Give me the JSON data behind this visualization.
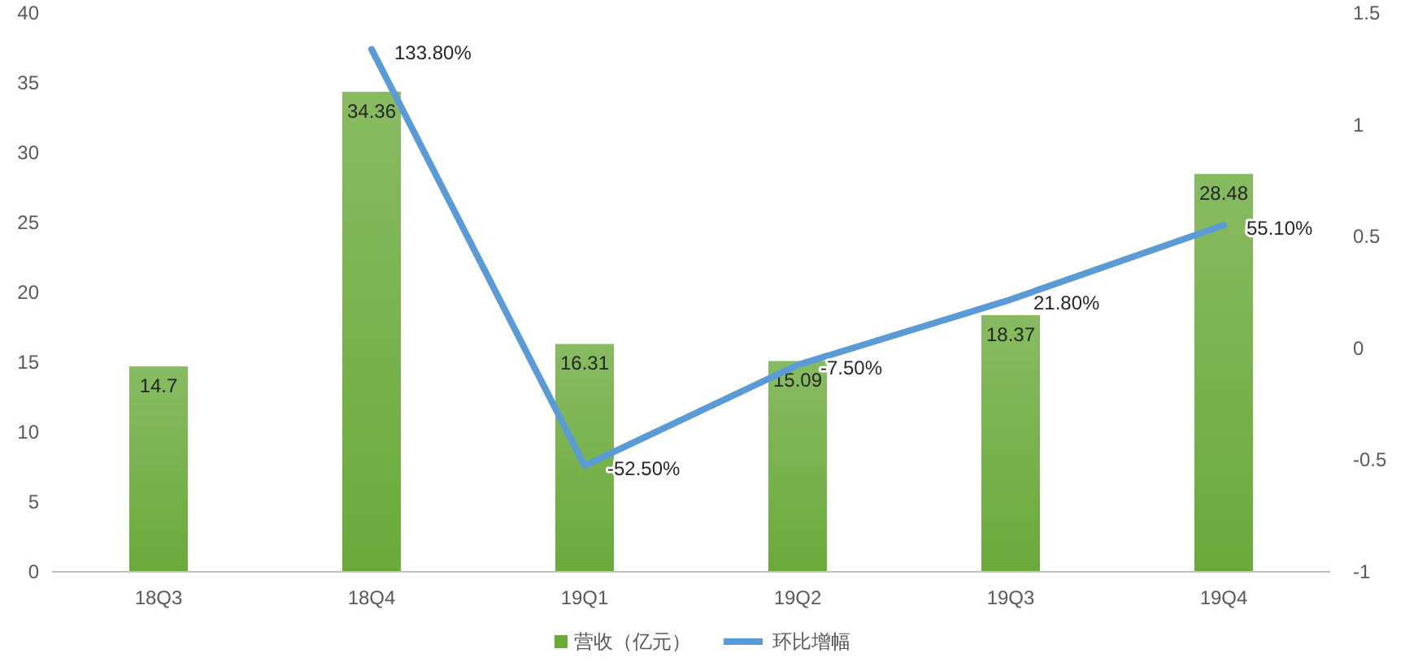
{
  "chart_data": {
    "type": "bar",
    "categories": [
      "18Q3",
      "18Q4",
      "19Q1",
      "19Q2",
      "19Q3",
      "19Q4"
    ],
    "series": [
      {
        "name": "营收（亿元）",
        "color": "#6aaa3a",
        "values": [
          14.7,
          34.36,
          16.31,
          15.09,
          18.37,
          28.48
        ]
      },
      {
        "name": "环比增幅",
        "type": "line",
        "axis": "y2",
        "color": "#5b9bd5",
        "values": [
          null,
          1.338,
          -0.525,
          -0.075,
          0.218,
          0.551
        ],
        "value_labels": [
          null,
          "133.80%",
          "-52.50%",
          "-7.50%",
          "21.80%",
          "55.10%"
        ]
      }
    ],
    "data_labels": true,
    "ylim": [
      0,
      40
    ],
    "yticks": [
      0,
      5,
      10,
      15,
      20,
      25,
      30,
      35,
      40
    ],
    "y2lim": [
      -1,
      1.5
    ],
    "y2ticks": [
      -1,
      -0.5,
      0,
      0.5,
      1,
      1.5
    ],
    "legend": "bottom",
    "grid": false
  }
}
